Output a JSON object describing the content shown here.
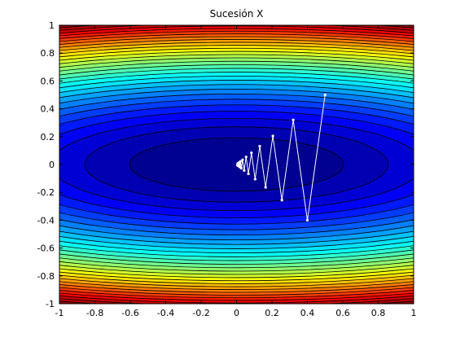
{
  "chart_data": {
    "type": "contour",
    "title": "Sucesión X",
    "xlabel": "",
    "ylabel": "",
    "xlim": [
      -1,
      1
    ],
    "ylim": [
      -1,
      1
    ],
    "x_ticks": [
      "-1",
      "-0.8",
      "-0.6",
      "-0.4",
      "-0.2",
      "0",
      "0.2",
      "0.4",
      "0.6",
      "0.8",
      "1"
    ],
    "y_ticks": [
      "-1",
      "-0.8",
      "-0.6",
      "-0.4",
      "-0.2",
      "0",
      "0.2",
      "0.4",
      "0.6",
      "0.8",
      "1"
    ],
    "grid": false,
    "colormap": "jet",
    "function": "x^2 + 10*y^2",
    "contour_levels": 30,
    "series": [
      {
        "x": [
          0.5,
          0.4,
          0.32,
          0.256,
          0.205,
          0.164,
          0.131,
          0.105,
          0.084,
          0.067,
          0.054,
          0.043,
          0.034,
          0.027,
          0.022,
          0.018,
          0.014,
          0.011,
          0.009,
          0.007,
          0.006,
          0.005
        ],
        "y": [
          0.5,
          -0.4,
          0.32,
          -0.256,
          0.205,
          -0.164,
          0.131,
          -0.105,
          0.084,
          -0.067,
          0.054,
          -0.043,
          0.034,
          -0.027,
          0.022,
          -0.018,
          0.014,
          -0.011,
          0.009,
          -0.007,
          0.006,
          -0.005
        ],
        "color": "#ffffff"
      }
    ]
  }
}
